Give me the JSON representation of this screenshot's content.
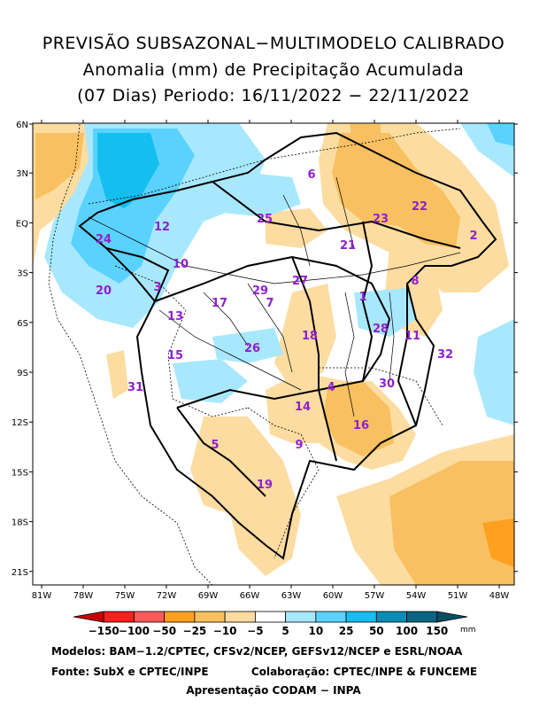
{
  "title": {
    "line1": "PREVISÃO SUBSAZONAL−MULTIMODELO CALIBRADO",
    "line2": "Anomalia (mm) de Precipitação Acumulada",
    "line3": "(07 Dias) Periodo: 16/11/2022 − 22/11/2022"
  },
  "map": {
    "y_ticks": [
      "6N",
      "3N",
      "EQ",
      "3S",
      "6S",
      "9S",
      "12S",
      "15S",
      "18S",
      "21S"
    ],
    "x_ticks": [
      "81W",
      "78W",
      "75W",
      "72W",
      "69W",
      "66W",
      "63W",
      "60W",
      "57W",
      "54W",
      "51W",
      "48W"
    ],
    "basins": [
      "1",
      "2",
      "3",
      "4",
      "5",
      "6",
      "7",
      "8",
      "9",
      "10",
      "11",
      "12",
      "13",
      "14",
      "15",
      "16",
      "17",
      "18",
      "19",
      "20",
      "21",
      "22",
      "23",
      "24",
      "25",
      "26",
      "27",
      "28",
      "29",
      "30",
      "31",
      "32"
    ]
  },
  "colorbar": {
    "unit": "mm",
    "labels": [
      "−150",
      "−100",
      "−50",
      "−25",
      "−10",
      "−5",
      "5",
      "10",
      "25",
      "50",
      "100",
      "150"
    ],
    "colors": [
      "#c80000",
      "#ff1e1e",
      "#ff5a5a",
      "#ffa020",
      "#f8c060",
      "#fcdca0",
      "#ffffff",
      "#a8e8ff",
      "#5ad2ff",
      "#14beee",
      "#0a8cb4",
      "#0a6482",
      "#084e64"
    ]
  },
  "footer": {
    "models": "Modelos: BAM−1.2/CPTEC, CFSv2/NCEP, GEFSv12/NCEP e ESRL/NOAA",
    "source": "Fonte: SubX e CPTEC/INPE",
    "collab": "Colaboração: CPTEC/INPE & FUNCEME",
    "presentation": "Apresentação CODAM − INPA"
  }
}
